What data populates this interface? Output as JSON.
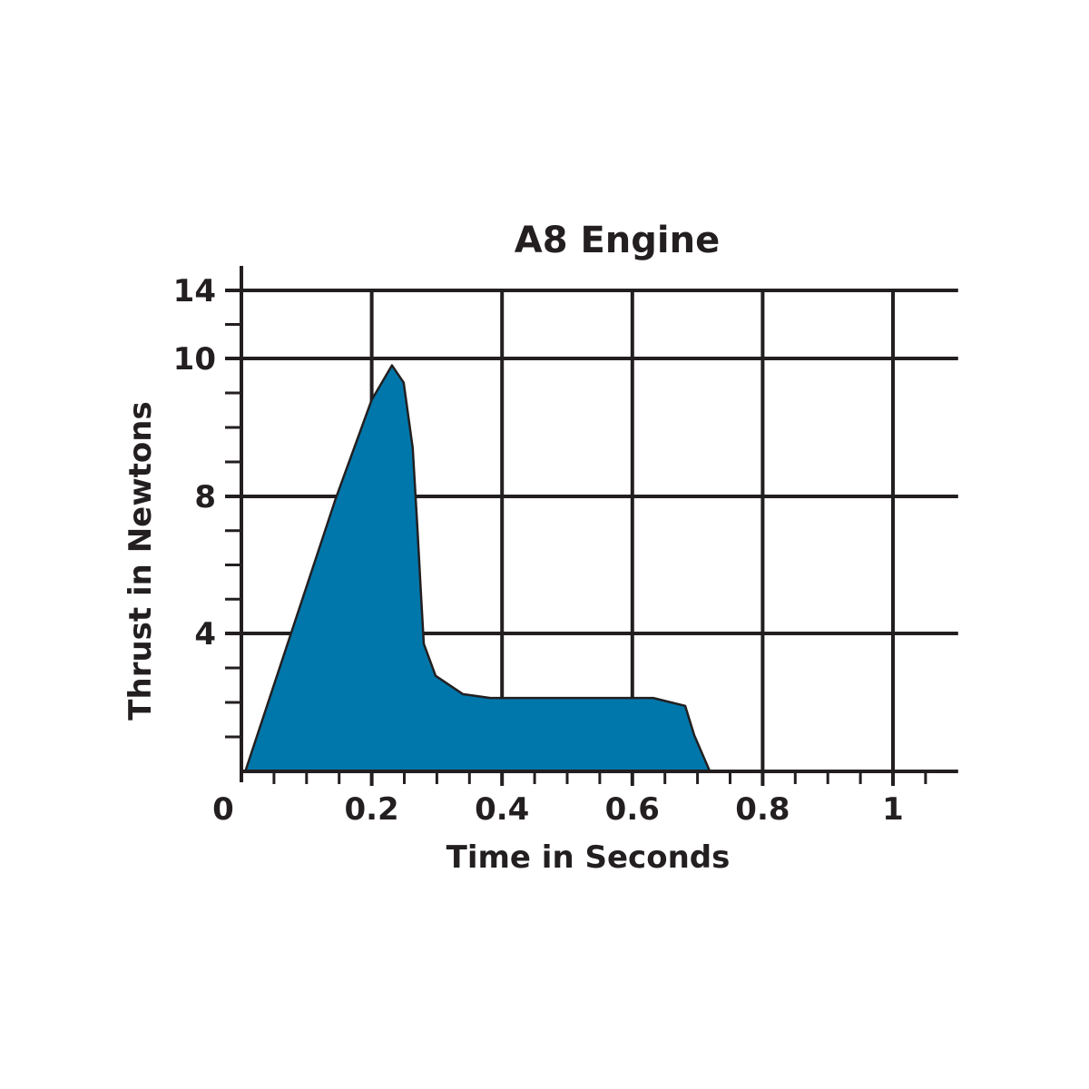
{
  "chart_data": {
    "type": "area",
    "title": "A8 Engine",
    "xlabel": "Time in Seconds",
    "ylabel": "Thrust in Newtons",
    "xlim": [
      0,
      1.1
    ],
    "x_ticks": [
      0,
      0.2,
      0.4,
      0.6,
      0.8,
      1
    ],
    "x_tick_labels": [
      "0",
      "0.2",
      "0.4",
      "0.6",
      "0.8",
      "1"
    ],
    "x_minor_step": 0.05,
    "y_ticks": [
      0,
      4,
      8,
      10,
      14
    ],
    "y_tick_labels": [
      "",
      "4",
      "8",
      "10",
      "14"
    ],
    "y_minor_ticks": [
      1,
      2,
      3,
      5,
      6,
      7,
      8.5,
      9,
      9.5,
      12
    ],
    "grid": true,
    "fill_color": "#0077ab",
    "line_color": "#231f20",
    "series": [
      {
        "x": [
          0.006,
          0.145,
          0.2,
          0.231,
          0.249,
          0.263,
          0.27,
          0.276,
          0.28,
          0.298,
          0.34,
          0.382,
          0.632,
          0.681,
          0.695,
          0.719
        ],
        "y": [
          0,
          7.95,
          9.4,
          9.9,
          9.65,
          8.7,
          7.1,
          5.0,
          3.7,
          2.77,
          2.24,
          2.13,
          2.13,
          1.9,
          1.05,
          0
        ]
      }
    ]
  }
}
